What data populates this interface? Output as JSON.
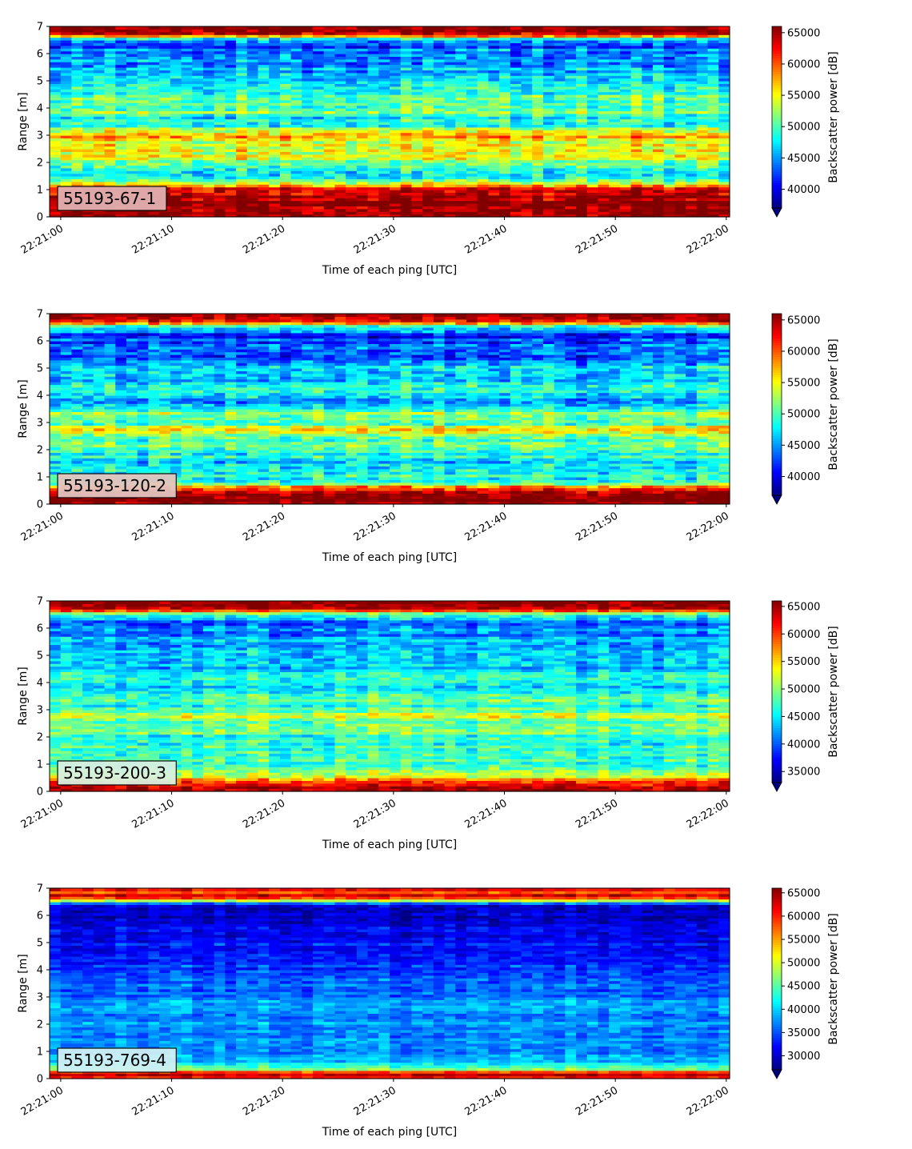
{
  "chart_data": [
    {
      "type": "heatmap",
      "label": "55193-67-1",
      "label_box_color": "#e2b0b0",
      "xlabel": "Time of each ping [UTC]",
      "ylabel": "Range [m]",
      "colorbar_label": "Backscatter power [dB]",
      "x_ticks": [
        "22:21:00",
        "22:21:10",
        "22:21:20",
        "22:21:30",
        "22:21:40",
        "22:21:50",
        "22:22:00"
      ],
      "xlim_seconds": [
        -1,
        60.3
      ],
      "y_ticks": [
        0,
        1,
        2,
        3,
        4,
        5,
        6,
        7
      ],
      "ylim": [
        0,
        7
      ],
      "colorbar_ticks": [
        40000,
        45000,
        50000,
        55000,
        60000,
        65000
      ],
      "color_range": [
        37000,
        66000
      ],
      "extend": "min",
      "colormap": "jet",
      "range_profile": [
        [
          0.0,
          66000
        ],
        [
          0.3,
          66000
        ],
        [
          0.6,
          66000
        ],
        [
          1.0,
          64000
        ],
        [
          1.2,
          56000
        ],
        [
          1.5,
          47000
        ],
        [
          1.8,
          49000
        ],
        [
          2.1,
          53000
        ],
        [
          2.4,
          56000
        ],
        [
          2.7,
          55000
        ],
        [
          3.0,
          57000
        ],
        [
          3.3,
          50000
        ],
        [
          3.6,
          48000
        ],
        [
          3.9,
          52000
        ],
        [
          4.2,
          49000
        ],
        [
          4.5,
          50000
        ],
        [
          4.8,
          48000
        ],
        [
          5.1,
          47000
        ],
        [
          5.4,
          46000
        ],
        [
          5.7,
          45000
        ],
        [
          6.0,
          44000
        ],
        [
          6.3,
          43000
        ],
        [
          6.55,
          48000
        ],
        [
          6.7,
          64000
        ],
        [
          7.0,
          66000
        ]
      ],
      "noise": 5500,
      "seed": 11
    },
    {
      "type": "heatmap",
      "label": "55193-120-2",
      "label_box_color": "#e4c4c0",
      "xlabel": "Time of each ping [UTC]",
      "ylabel": "Range [m]",
      "colorbar_label": "Backscatter power [dB]",
      "x_ticks": [
        "22:21:00",
        "22:21:10",
        "22:21:20",
        "22:21:30",
        "22:21:40",
        "22:21:50",
        "22:22:00"
      ],
      "xlim_seconds": [
        -1,
        60.3
      ],
      "y_ticks": [
        0,
        1,
        2,
        3,
        4,
        5,
        6,
        7
      ],
      "ylim": [
        0,
        7
      ],
      "colorbar_ticks": [
        40000,
        45000,
        50000,
        55000,
        60000,
        65000
      ],
      "color_range": [
        37000,
        66000
      ],
      "extend": "min",
      "colormap": "jet",
      "range_profile": [
        [
          0.0,
          66000
        ],
        [
          0.3,
          66000
        ],
        [
          0.55,
          62000
        ],
        [
          0.8,
          50000
        ],
        [
          1.2,
          47000
        ],
        [
          1.6,
          48000
        ],
        [
          2.0,
          50000
        ],
        [
          2.4,
          50000
        ],
        [
          2.7,
          56000
        ],
        [
          3.0,
          50000
        ],
        [
          3.3,
          52000
        ],
        [
          3.6,
          47000
        ],
        [
          3.9,
          46000
        ],
        [
          4.2,
          48000
        ],
        [
          4.5,
          47000
        ],
        [
          4.8,
          45000
        ],
        [
          5.1,
          47000
        ],
        [
          5.4,
          44000
        ],
        [
          5.8,
          43000
        ],
        [
          6.2,
          42000
        ],
        [
          6.5,
          46000
        ],
        [
          6.7,
          62000
        ],
        [
          7.0,
          66000
        ]
      ],
      "noise": 5500,
      "seed": 29
    },
    {
      "type": "heatmap",
      "label": "55193-200-3",
      "label_box_color": "#d8f0e0",
      "xlabel": "Time of each ping [UTC]",
      "ylabel": "Range [m]",
      "colorbar_label": "Backscatter power [dB]",
      "x_ticks": [
        "22:21:00",
        "22:21:10",
        "22:21:20",
        "22:21:30",
        "22:21:40",
        "22:21:50",
        "22:22:00"
      ],
      "xlim_seconds": [
        -1,
        60.3
      ],
      "y_ticks": [
        0,
        1,
        2,
        3,
        4,
        5,
        6,
        7
      ],
      "ylim": [
        0,
        7
      ],
      "colorbar_ticks": [
        35000,
        40000,
        45000,
        50000,
        55000,
        60000,
        65000
      ],
      "color_range": [
        33000,
        66000
      ],
      "extend": "min",
      "colormap": "jet",
      "range_profile": [
        [
          0.0,
          66000
        ],
        [
          0.3,
          63000
        ],
        [
          0.55,
          52000
        ],
        [
          0.9,
          48000
        ],
        [
          1.3,
          47000
        ],
        [
          1.7,
          47000
        ],
        [
          2.1,
          48000
        ],
        [
          2.5,
          49000
        ],
        [
          2.8,
          53000
        ],
        [
          3.1,
          46000
        ],
        [
          3.4,
          48000
        ],
        [
          3.7,
          44000
        ],
        [
          4.0,
          46000
        ],
        [
          4.3,
          45000
        ],
        [
          4.6,
          44000
        ],
        [
          5.0,
          45000
        ],
        [
          5.4,
          43000
        ],
        [
          5.8,
          42000
        ],
        [
          6.2,
          41000
        ],
        [
          6.5,
          46000
        ],
        [
          6.7,
          64000
        ],
        [
          7.0,
          66000
        ]
      ],
      "noise": 5500,
      "seed": 47
    },
    {
      "type": "heatmap",
      "label": "55193-769-4",
      "label_box_color": "#d0f0f4",
      "xlabel": "Time of each ping [UTC]",
      "ylabel": "Range [m]",
      "colorbar_label": "Backscatter power [dB]",
      "x_ticks": [
        "22:21:00",
        "22:21:10",
        "22:21:20",
        "22:21:30",
        "22:21:40",
        "22:21:50",
        "22:22:00"
      ],
      "xlim_seconds": [
        -1,
        60.3
      ],
      "y_ticks": [
        0,
        1,
        2,
        3,
        4,
        5,
        6,
        7
      ],
      "ylim": [
        0,
        7
      ],
      "colorbar_ticks": [
        30000,
        35000,
        40000,
        45000,
        50000,
        55000,
        60000,
        65000
      ],
      "color_range": [
        27000,
        66000
      ],
      "extend": "min",
      "colormap": "jet",
      "range_profile": [
        [
          0.0,
          60000
        ],
        [
          0.2,
          64000
        ],
        [
          0.35,
          46000
        ],
        [
          0.6,
          40000
        ],
        [
          1.0,
          37000
        ],
        [
          1.5,
          37000
        ],
        [
          2.0,
          38000
        ],
        [
          2.5,
          37000
        ],
        [
          2.8,
          39000
        ],
        [
          3.2,
          35000
        ],
        [
          3.6,
          36000
        ],
        [
          4.0,
          34000
        ],
        [
          4.4,
          34000
        ],
        [
          4.8,
          33000
        ],
        [
          5.2,
          32000
        ],
        [
          5.6,
          31000
        ],
        [
          6.0,
          30000
        ],
        [
          6.4,
          31000
        ],
        [
          6.55,
          48000
        ],
        [
          6.7,
          64000
        ],
        [
          6.85,
          58000
        ],
        [
          7.0,
          62000
        ]
      ],
      "noise": 4500,
      "seed": 83
    }
  ]
}
